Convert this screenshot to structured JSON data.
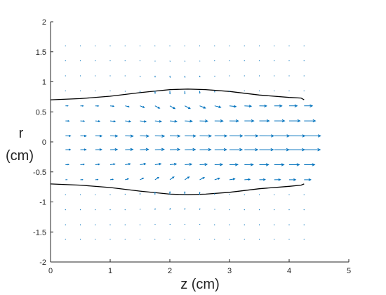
{
  "chart_data": {
    "type": "quiver",
    "xlabel": "z (cm)",
    "ylabel_line1": "r",
    "ylabel_line2": "(cm)",
    "xlim": [
      0,
      5
    ],
    "ylim": [
      -2,
      2
    ],
    "xticks": [
      0,
      1,
      2,
      3,
      4,
      5
    ],
    "yticks": [
      -2,
      -1.5,
      -1,
      -0.5,
      0,
      0.5,
      1,
      1.5,
      2
    ],
    "grid": false,
    "legend": "none",
    "series": [
      {
        "kind": "boundary-line",
        "color": "#000000",
        "points": [
          [
            0,
            0.7
          ],
          [
            0.5,
            0.72
          ],
          [
            1,
            0.76
          ],
          [
            1.5,
            0.82
          ],
          [
            2,
            0.87
          ],
          [
            2.3,
            0.88
          ],
          [
            2.6,
            0.87
          ],
          [
            3,
            0.84
          ],
          [
            3.5,
            0.78
          ],
          [
            4,
            0.74
          ],
          [
            4.2,
            0.73
          ],
          [
            4.25,
            0.7
          ]
        ]
      },
      {
        "kind": "boundary-line",
        "color": "#000000",
        "points": [
          [
            0,
            -0.7
          ],
          [
            0.5,
            -0.72
          ],
          [
            1,
            -0.76
          ],
          [
            1.5,
            -0.82
          ],
          [
            2,
            -0.87
          ],
          [
            2.3,
            -0.88
          ],
          [
            2.6,
            -0.87
          ],
          [
            3,
            -0.84
          ],
          [
            3.5,
            -0.78
          ],
          [
            4,
            -0.74
          ],
          [
            4.2,
            -0.72
          ],
          [
            4.25,
            -0.7
          ]
        ]
      },
      {
        "kind": "vector-field",
        "color": "#0072bd",
        "z": [
          0.25,
          0.5,
          0.75,
          1.0,
          1.25,
          1.5,
          1.75,
          2.0,
          2.25,
          2.5,
          2.75,
          3.0,
          3.25,
          3.5,
          3.75,
          4.0,
          4.25
        ],
        "r": [
          1.6,
          1.35,
          1.1,
          0.85,
          0.6,
          0.35,
          0.1,
          -0.13,
          -0.38,
          -0.63,
          -0.88,
          -1.13,
          -1.38,
          -1.62
        ]
      }
    ]
  }
}
